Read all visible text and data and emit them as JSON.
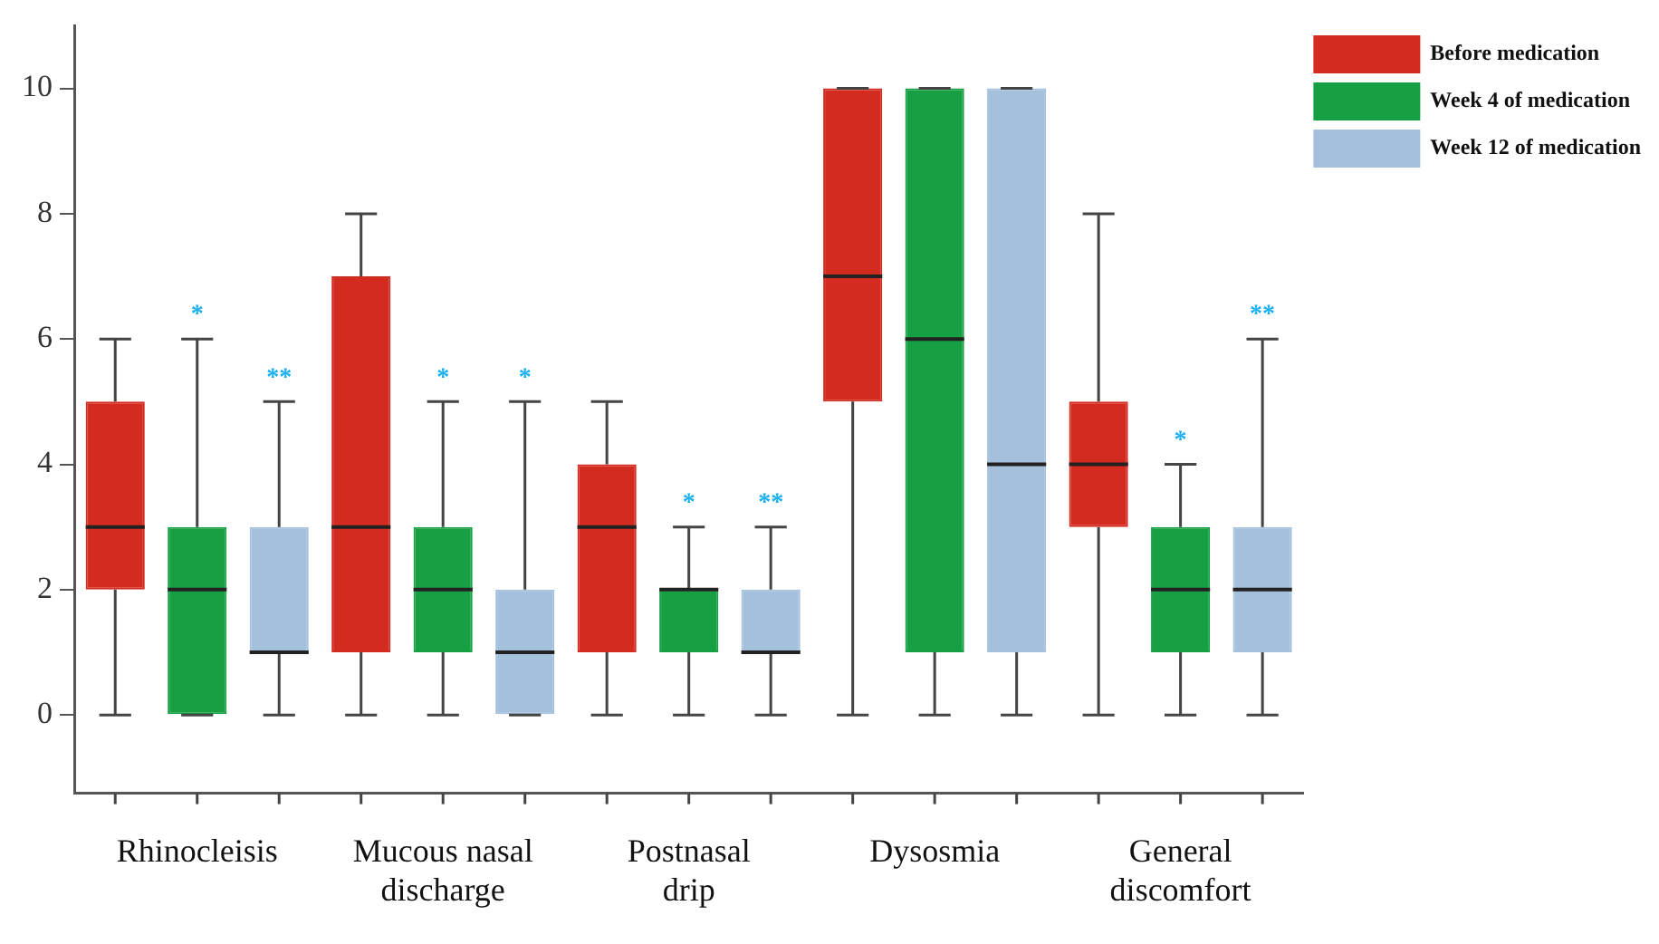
{
  "chart_data": {
    "type": "box",
    "categories": [
      "Rhinocleisis",
      "Mucous nasal discharge",
      "Postnasal drip",
      "Dysosmia",
      "General discomfort"
    ],
    "series": [
      {
        "name": "Before medication",
        "color": "#d42b20",
        "boxes": [
          {
            "low": 0,
            "q1": 2,
            "median": 3,
            "q3": 5,
            "high": 6
          },
          {
            "low": 0,
            "q1": 1,
            "median": 3,
            "q3": 7,
            "high": 8
          },
          {
            "low": 0,
            "q1": 1,
            "median": 3,
            "q3": 4,
            "high": 5
          },
          {
            "low": 0,
            "q1": 5,
            "median": 7,
            "q3": 10,
            "high": 10
          },
          {
            "low": 0,
            "q1": 3,
            "median": 4,
            "q3": 5,
            "high": 8
          }
        ],
        "value_labels": [
          null,
          null,
          null,
          null,
          null
        ]
      },
      {
        "name": "Week 4 of medication",
        "color": "#17a043",
        "boxes": [
          {
            "low": 0,
            "q1": 0,
            "median": 2,
            "q3": 3,
            "high": 6
          },
          {
            "low": 0,
            "q1": 1,
            "median": 2,
            "q3": 3,
            "high": 5
          },
          {
            "low": 0,
            "q1": 1,
            "median": 2,
            "q3": 2,
            "high": 3
          },
          {
            "low": 0,
            "q1": 1,
            "median": 6,
            "q3": 10,
            "high": 10
          },
          {
            "low": 0,
            "q1": 1,
            "median": 2,
            "q3": 3,
            "high": 4
          }
        ],
        "value_labels": [
          "*",
          "*",
          "*",
          null,
          "*"
        ]
      },
      {
        "name": "Week 12 of medication",
        "color": "#a4c0dc",
        "boxes": [
          {
            "low": 0,
            "q1": 1,
            "median": 1,
            "q3": 3,
            "high": 5
          },
          {
            "low": 0,
            "q1": 0,
            "median": 1,
            "q3": 2,
            "high": 5
          },
          {
            "low": 0,
            "q1": 1,
            "median": 1,
            "q3": 2,
            "high": 3
          },
          {
            "low": 0,
            "q1": 1,
            "median": 4,
            "q3": 10,
            "high": 10
          },
          {
            "low": 0,
            "q1": 1,
            "median": 2,
            "q3": 3,
            "high": 6
          }
        ],
        "value_labels": [
          "**",
          "*",
          "**",
          null,
          "**"
        ]
      }
    ],
    "ylim": [
      -1.25,
      11
    ],
    "yticks": [
      0,
      2,
      4,
      6,
      8,
      10
    ],
    "grid": false,
    "legend": "top right"
  }
}
